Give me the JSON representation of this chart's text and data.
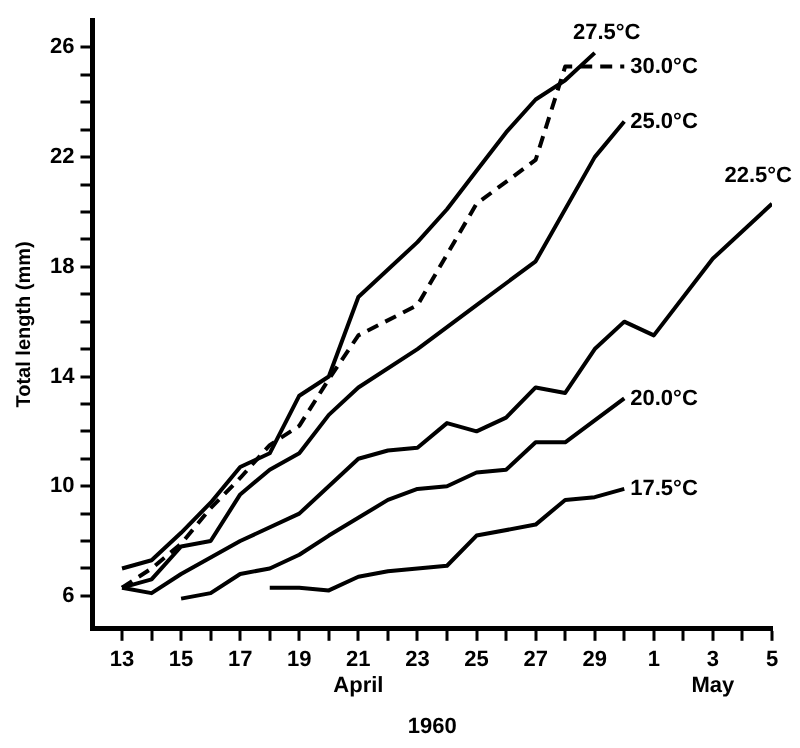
{
  "chart_data": {
    "type": "line",
    "xlabel": "1960",
    "ylabel": "Total length (mm)",
    "xlim": [
      "1960-04-12",
      "1960-05-05"
    ],
    "ylim": [
      4.8,
      27
    ],
    "xticks": [
      {
        "value": "1960-04-13",
        "label": "13"
      },
      {
        "value": "1960-04-14",
        "label": null
      },
      {
        "value": "1960-04-15",
        "label": "15"
      },
      {
        "value": "1960-04-16",
        "label": null
      },
      {
        "value": "1960-04-17",
        "label": "17"
      },
      {
        "value": "1960-04-18",
        "label": null
      },
      {
        "value": "1960-04-19",
        "label": "19"
      },
      {
        "value": "1960-04-20",
        "label": null
      },
      {
        "value": "1960-04-21",
        "label": "21\nApril"
      },
      {
        "value": "1960-04-22",
        "label": null
      },
      {
        "value": "1960-04-23",
        "label": "23"
      },
      {
        "value": "1960-04-24",
        "label": null
      },
      {
        "value": "1960-04-25",
        "label": "25"
      },
      {
        "value": "1960-04-26",
        "label": null
      },
      {
        "value": "1960-04-27",
        "label": "27"
      },
      {
        "value": "1960-04-28",
        "label": null
      },
      {
        "value": "1960-04-29",
        "label": "29"
      },
      {
        "value": "1960-04-30",
        "label": null
      },
      {
        "value": "1960-05-01",
        "label": "1"
      },
      {
        "value": "1960-05-02",
        "label": null
      },
      {
        "value": "1960-05-03",
        "label": "3\nMay"
      },
      {
        "value": "1960-05-04",
        "label": null
      },
      {
        "value": "1960-05-05",
        "label": "5"
      }
    ],
    "yticks": [
      6,
      {
        "value": 7,
        "label": null
      },
      {
        "value": 8,
        "label": null
      },
      {
        "value": 9,
        "label": null
      },
      10,
      {
        "value": 11,
        "label": null
      },
      {
        "value": 12,
        "label": null
      },
      {
        "value": 13,
        "label": null
      },
      14,
      {
        "value": 15,
        "label": null
      },
      {
        "value": 16,
        "label": null
      },
      {
        "value": 17,
        "label": null
      },
      18,
      {
        "value": 19,
        "label": null
      },
      {
        "value": 20,
        "label": null
      },
      {
        "value": 21,
        "label": null
      },
      22,
      {
        "value": 23,
        "label": null
      },
      {
        "value": 24,
        "label": null
      },
      {
        "value": 25,
        "label": null
      },
      26
    ],
    "grid": false,
    "marker": "none",
    "series": [
      {
        "name": "27.5°C",
        "color": "#000000",
        "line_style": "solid",
        "x": [
          "1960-04-13",
          "1960-04-14",
          "1960-04-15",
          "1960-04-16",
          "1960-04-17",
          "1960-04-18",
          "1960-04-19",
          "1960-04-20",
          "1960-04-21",
          "1960-04-23",
          "1960-04-24",
          "1960-04-25",
          "1960-04-26",
          "1960-04-27",
          "1960-04-28",
          "1960-04-29"
        ],
        "values": [
          7.0,
          7.3,
          8.3,
          9.4,
          10.7,
          11.2,
          13.3,
          14.0,
          16.9,
          18.9,
          20.1,
          21.5,
          22.9,
          24.1,
          24.8,
          25.8
        ]
      },
      {
        "name": "30.0°C",
        "color": "#000000",
        "line_style": "dashed",
        "x": [
          "1960-04-13",
          "1960-04-14",
          "1960-04-15",
          "1960-04-16",
          "1960-04-17",
          "1960-04-18",
          "1960-04-19",
          "1960-04-20",
          "1960-04-21",
          "1960-04-23",
          "1960-04-25",
          "1960-04-27",
          "1960-04-28",
          "1960-04-29",
          "1960-04-30"
        ],
        "values": [
          6.3,
          7.0,
          7.9,
          9.2,
          10.3,
          11.5,
          12.2,
          13.9,
          15.5,
          16.6,
          20.3,
          21.9,
          25.3,
          25.3,
          25.3
        ]
      },
      {
        "name": "25.0°C",
        "color": "#000000",
        "line_style": "solid",
        "x": [
          "1960-04-13",
          "1960-04-14",
          "1960-04-15",
          "1960-04-16",
          "1960-04-17",
          "1960-04-18",
          "1960-04-19",
          "1960-04-20",
          "1960-04-21",
          "1960-04-23",
          "1960-04-25",
          "1960-04-27",
          "1960-04-29",
          "1960-04-30"
        ],
        "values": [
          6.3,
          6.6,
          7.8,
          8.0,
          9.7,
          10.6,
          11.2,
          12.6,
          13.6,
          15.0,
          16.6,
          18.2,
          22.0,
          23.3
        ]
      },
      {
        "name": "22.5°C",
        "color": "#000000",
        "line_style": "solid",
        "x": [
          "1960-04-13",
          "1960-04-14",
          "1960-04-15",
          "1960-04-17",
          "1960-04-19",
          "1960-04-21",
          "1960-04-22",
          "1960-04-23",
          "1960-04-24",
          "1960-04-25",
          "1960-04-26",
          "1960-04-27",
          "1960-04-28",
          "1960-04-29",
          "1960-04-30",
          "1960-05-01",
          "1960-05-03",
          "1960-05-05"
        ],
        "values": [
          6.3,
          6.1,
          6.8,
          8.0,
          9.0,
          11.0,
          11.3,
          11.4,
          12.3,
          12.0,
          12.5,
          13.6,
          13.4,
          15.0,
          16.0,
          15.5,
          18.3,
          20.3
        ]
      },
      {
        "name": "20.0°C",
        "color": "#000000",
        "line_style": "solid",
        "x": [
          "1960-04-15",
          "1960-04-16",
          "1960-04-17",
          "1960-04-18",
          "1960-04-19",
          "1960-04-20",
          "1960-04-22",
          "1960-04-23",
          "1960-04-24",
          "1960-04-25",
          "1960-04-26",
          "1960-04-27",
          "1960-04-28",
          "1960-04-30"
        ],
        "values": [
          5.9,
          6.1,
          6.8,
          7.0,
          7.5,
          8.2,
          9.5,
          9.9,
          10.0,
          10.5,
          10.6,
          11.6,
          11.6,
          13.2
        ]
      },
      {
        "name": "17.5°C",
        "color": "#000000",
        "line_style": "solid",
        "x": [
          "1960-04-18",
          "1960-04-19",
          "1960-04-20",
          "1960-04-21",
          "1960-04-22",
          "1960-04-24",
          "1960-04-25",
          "1960-04-27",
          "1960-04-28",
          "1960-04-29",
          "1960-04-30"
        ],
        "values": [
          6.3,
          6.3,
          6.2,
          6.7,
          6.9,
          7.1,
          8.2,
          8.6,
          9.5,
          9.6,
          9.9
        ]
      }
    ]
  }
}
